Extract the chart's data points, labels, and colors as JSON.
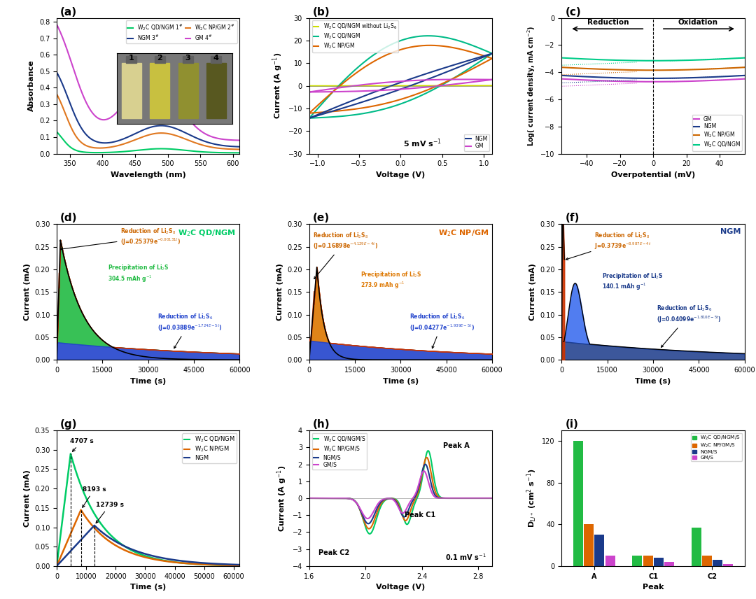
{
  "panel_a": {
    "colors": [
      "#00cc66",
      "#1a3a8a",
      "#e07820",
      "#cc44cc"
    ],
    "legend": [
      "W$_2$C QD/NGM 1$^\\#$",
      "NGM 3$^\\#$",
      "W$_2$C NP/GM 2$^\\#$",
      "GM 4$^\\#$"
    ]
  },
  "panel_b": {
    "colors": [
      "#ccdd00",
      "#00bb88",
      "#dd6600",
      "#1a3a8a",
      "#cc44cc"
    ],
    "legend": [
      "W$_2$C QD/NGM without Li$_2$S$_6$",
      "W$_2$C QD/NGM",
      "W$_2$C NP/GM",
      "NGM",
      "GM"
    ]
  },
  "panel_c": {
    "colors": [
      "#cc44cc",
      "#1a3a8a",
      "#cc6600",
      "#00cc88"
    ]
  },
  "panel_d": {
    "A1": 0.25379,
    "k1": 0.000131,
    "A2": 0.03889,
    "k2": 1.724e-05,
    "col_red": "#cc3300",
    "col_green": "#22bb44",
    "col_blue": "#2244cc",
    "subtitle": "W$_2$C QD/NGM",
    "subtitle_color": "#00cc66",
    "annot1_color": "#cc6600",
    "annot2_color": "#22bb44",
    "annot3_color": "#2244cc"
  },
  "panel_e": {
    "A1": 0.16898,
    "k1": 0.0004129,
    "A2": 0.04277,
    "k2": 1.939e-05,
    "col_red": "#cc3300",
    "col_green": "#dd7700",
    "col_blue": "#2244cc",
    "subtitle": "W$_2$C NP/GM",
    "subtitle_color": "#dd6600",
    "annot1_color": "#cc6600",
    "annot2_color": "#dd7700",
    "annot3_color": "#2244cc"
  },
  "panel_f": {
    "A1": 0.3739,
    "k1": 0.0008987,
    "A2": 0.04099,
    "k2": 1.81e-05,
    "col_red": "#cc3300",
    "col_green": "#3344dd",
    "col_blue": "#1a3a8a",
    "subtitle": "NGM",
    "subtitle_color": "#1a3a8a",
    "annot1_color": "#cc6600",
    "annot2_color": "#1a3a8a",
    "annot3_color": "#1a3a8a"
  },
  "panel_g": {
    "colors": [
      "#00cc66",
      "#dd6600",
      "#1a3a8a"
    ]
  },
  "panel_h": {
    "colors": [
      "#00cc66",
      "#dd6600",
      "#1a3a8a",
      "#cc44cc"
    ]
  },
  "panel_i": {
    "colors": [
      "#22bb44",
      "#dd6600",
      "#1a3a8a",
      "#cc44cc"
    ],
    "values_A": [
      120,
      40,
      30,
      10
    ],
    "values_C1": [
      10,
      10,
      8,
      4
    ],
    "values_C2": [
      37,
      10,
      6,
      2
    ]
  }
}
